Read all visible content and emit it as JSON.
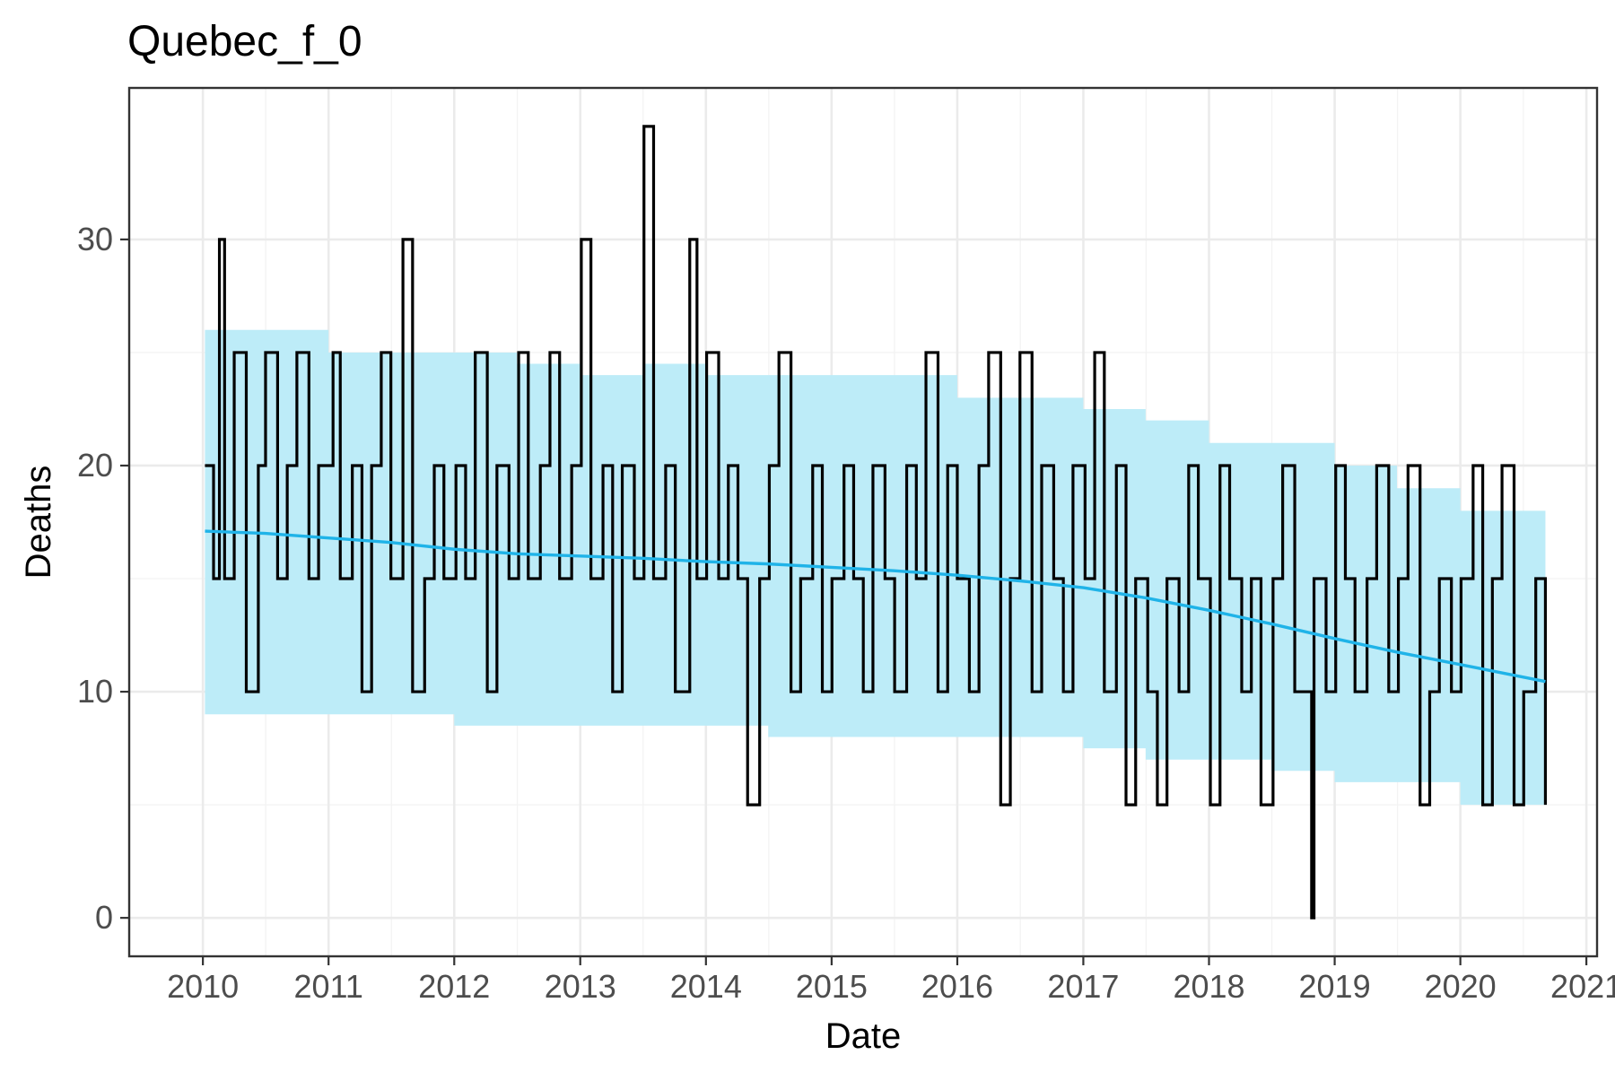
{
  "chart_data": {
    "type": "line",
    "title": "Quebec_f_0",
    "xlabel": "Date",
    "ylabel": "Deaths",
    "x_axis_kind": "date",
    "xlim": [
      "2009-06-01",
      "2021-02-01"
    ],
    "ylim": [
      -1.7,
      36.7
    ],
    "x_ticks": [
      "2010",
      "2011",
      "2012",
      "2013",
      "2014",
      "2015",
      "2016",
      "2017",
      "2018",
      "2019",
      "2020",
      "2021"
    ],
    "y_ticks": [
      0,
      10,
      20,
      30
    ],
    "grid": true,
    "legend": "none",
    "colors": {
      "observed": "#000000",
      "trend": "#1fb3e8",
      "band": "#bdecf8",
      "panel_border": "#333333",
      "grid": "#ebebeb",
      "tick_text": "#4d4d4d"
    },
    "series": [
      {
        "role": "observed",
        "kind": "step",
        "x": [
          "2010-01-07",
          "2010-02-01",
          "2010-02-18",
          "2010-03-05",
          "2010-04-02",
          "2010-05-07",
          "2010-06-11",
          "2010-07-02",
          "2010-08-06",
          "2010-09-03",
          "2010-10-01",
          "2010-11-05",
          "2010-12-03",
          "2011-01-14",
          "2011-02-04",
          "2011-03-11",
          "2011-04-08",
          "2011-05-06",
          "2011-06-03",
          "2011-07-01",
          "2011-08-05",
          "2011-09-02",
          "2011-10-07",
          "2011-11-04",
          "2011-12-02",
          "2012-01-06",
          "2012-02-03",
          "2012-03-02",
          "2012-04-06",
          "2012-05-04",
          "2012-06-08",
          "2012-07-06",
          "2012-08-03",
          "2012-09-07",
          "2012-10-05",
          "2012-11-02",
          "2012-12-07",
          "2013-01-04",
          "2013-02-01",
          "2013-03-08",
          "2013-04-05",
          "2013-05-03",
          "2013-06-07",
          "2013-07-05",
          "2013-08-02",
          "2013-09-06",
          "2013-10-04",
          "2013-11-15",
          "2013-12-06",
          "2014-01-03",
          "2014-02-07",
          "2014-03-07",
          "2014-04-04",
          "2014-05-02",
          "2014-06-06",
          "2014-07-04",
          "2014-08-01",
          "2014-09-05",
          "2014-10-03",
          "2014-11-07",
          "2014-12-05",
          "2015-01-02",
          "2015-02-06",
          "2015-03-06",
          "2015-04-03",
          "2015-05-01",
          "2015-06-05",
          "2015-07-03",
          "2015-08-07",
          "2015-09-04",
          "2015-10-02",
          "2015-11-06",
          "2015-12-04",
          "2016-01-01",
          "2016-02-05",
          "2016-03-04",
          "2016-04-01",
          "2016-05-06",
          "2016-06-03",
          "2016-07-01",
          "2016-08-05",
          "2016-09-02",
          "2016-10-07",
          "2016-11-04",
          "2016-12-02",
          "2017-01-06",
          "2017-02-03",
          "2017-03-03",
          "2017-04-07",
          "2017-05-05",
          "2017-06-02",
          "2017-07-07",
          "2017-08-04",
          "2017-09-01",
          "2017-10-06",
          "2017-11-03",
          "2017-12-01",
          "2018-01-05",
          "2018-02-02",
          "2018-03-02",
          "2018-04-06",
          "2018-05-04",
          "2018-06-01",
          "2018-07-06",
          "2018-08-03",
          "2018-09-07",
          "2018-10-26",
          "2018-11-02",
          "2018-12-07",
          "2019-01-04",
          "2019-02-01",
          "2019-03-01",
          "2019-04-05",
          "2019-05-03",
          "2019-06-07",
          "2019-07-05",
          "2019-08-02",
          "2019-09-06",
          "2019-10-04",
          "2019-11-01",
          "2019-12-06",
          "2020-01-03",
          "2020-02-07",
          "2020-03-06",
          "2020-04-03",
          "2020-05-01",
          "2020-06-05",
          "2020-07-03",
          "2020-08-07",
          "2020-09-04"
        ],
        "values": [
          20,
          15,
          30,
          15,
          25,
          10,
          20,
          25,
          15,
          20,
          25,
          15,
          20,
          25,
          15,
          20,
          10,
          20,
          25,
          15,
          30,
          10,
          15,
          20,
          15,
          20,
          15,
          25,
          10,
          20,
          15,
          25,
          15,
          20,
          25,
          15,
          20,
          30,
          15,
          20,
          10,
          20,
          15,
          35,
          15,
          20,
          10,
          30,
          15,
          25,
          15,
          20,
          15,
          5,
          15,
          20,
          25,
          10,
          15,
          20,
          10,
          15,
          20,
          15,
          10,
          20,
          15,
          10,
          20,
          15,
          25,
          10,
          20,
          15,
          10,
          20,
          25,
          5,
          15,
          25,
          10,
          20,
          15,
          10,
          20,
          15,
          25,
          10,
          20,
          5,
          15,
          10,
          5,
          15,
          10,
          20,
          15,
          5,
          20,
          15,
          10,
          15,
          5,
          15,
          20,
          10,
          0,
          15,
          10,
          20,
          15,
          10,
          15,
          20,
          10,
          15,
          20,
          5,
          10,
          15,
          10,
          15,
          20,
          5,
          15,
          20,
          5,
          10,
          15,
          5
        ]
      },
      {
        "role": "trend",
        "kind": "line",
        "x": [
          "2010-01-07",
          "2010-07-01",
          "2011-01-01",
          "2011-07-01",
          "2012-01-01",
          "2012-07-01",
          "2013-01-01",
          "2013-07-01",
          "2014-01-01",
          "2014-07-01",
          "2015-01-01",
          "2015-07-01",
          "2016-01-01",
          "2016-07-01",
          "2017-01-01",
          "2017-07-01",
          "2018-01-01",
          "2018-07-01",
          "2019-01-01",
          "2019-07-01",
          "2020-01-01",
          "2020-09-04"
        ],
        "values": [
          17.1,
          17.0,
          16.8,
          16.6,
          16.3,
          16.1,
          16.0,
          15.9,
          15.75,
          15.65,
          15.5,
          15.35,
          15.15,
          14.9,
          14.6,
          14.15,
          13.6,
          13.0,
          12.35,
          11.75,
          11.2,
          10.45
        ]
      },
      {
        "role": "band",
        "kind": "interval",
        "x": [
          "2010-01-07",
          "2010-07-01",
          "2011-01-01",
          "2011-07-01",
          "2012-01-01",
          "2012-07-01",
          "2013-01-01",
          "2013-07-01",
          "2014-01-01",
          "2014-07-01",
          "2015-01-01",
          "2015-07-01",
          "2016-01-01",
          "2016-07-01",
          "2017-01-01",
          "2017-07-01",
          "2018-01-01",
          "2018-07-01",
          "2019-01-01",
          "2019-07-01",
          "2020-01-01",
          "2020-09-04"
        ],
        "upper": [
          26,
          26,
          25,
          25,
          25,
          24.5,
          24,
          24.5,
          24,
          24,
          24,
          24,
          23,
          23,
          22.5,
          22,
          21,
          21,
          20,
          19,
          18,
          18
        ],
        "lower": [
          9,
          9,
          9,
          9,
          8.5,
          8.5,
          8.5,
          8.5,
          8.5,
          8,
          8,
          8,
          8,
          8,
          7.5,
          7,
          7,
          6.5,
          6,
          6,
          5,
          4
        ]
      }
    ]
  }
}
